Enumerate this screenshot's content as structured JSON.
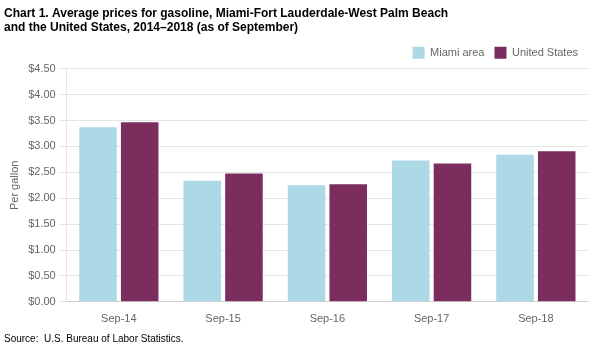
{
  "chart_data": {
    "type": "bar",
    "title": [
      "Chart 1. Average prices for gasoline, Miami-Fort Lauderdale-West Palm Beach",
      "and the United States, 2014–2018 (as of September)"
    ],
    "ylabel": "Per gallon",
    "annotations": [
      "Source:  U.S. Bureau of Labor Statistics."
    ],
    "categories": [
      "Sep-14",
      "Sep-15",
      "Sep-16",
      "Sep-17",
      "Sep-18"
    ],
    "series": [
      {
        "name": "Miami area",
        "color": "#ADD8E6",
        "values": [
          3.37,
          2.34,
          2.25,
          2.73,
          2.84
        ]
      },
      {
        "name": "United States",
        "color": "#7B2D5E",
        "values": [
          3.47,
          2.48,
          2.27,
          2.67,
          2.91
        ]
      }
    ],
    "ylim": [
      0,
      4.5
    ],
    "yticks": [
      {
        "value": 0.0,
        "label": "$0.00"
      },
      {
        "value": 0.5,
        "label": "$0.50"
      },
      {
        "value": 1.0,
        "label": "$1.00"
      },
      {
        "value": 1.5,
        "label": "$1.50"
      },
      {
        "value": 2.0,
        "label": "$2.00"
      },
      {
        "value": 2.5,
        "label": "$2.50"
      },
      {
        "value": 3.0,
        "label": "$3.00"
      },
      {
        "value": 3.5,
        "label": "$3.50"
      },
      {
        "value": 4.0,
        "label": "$4.00"
      },
      {
        "value": 4.5,
        "label": "$4.50"
      }
    ],
    "grid": true,
    "legend": "upper right"
  }
}
